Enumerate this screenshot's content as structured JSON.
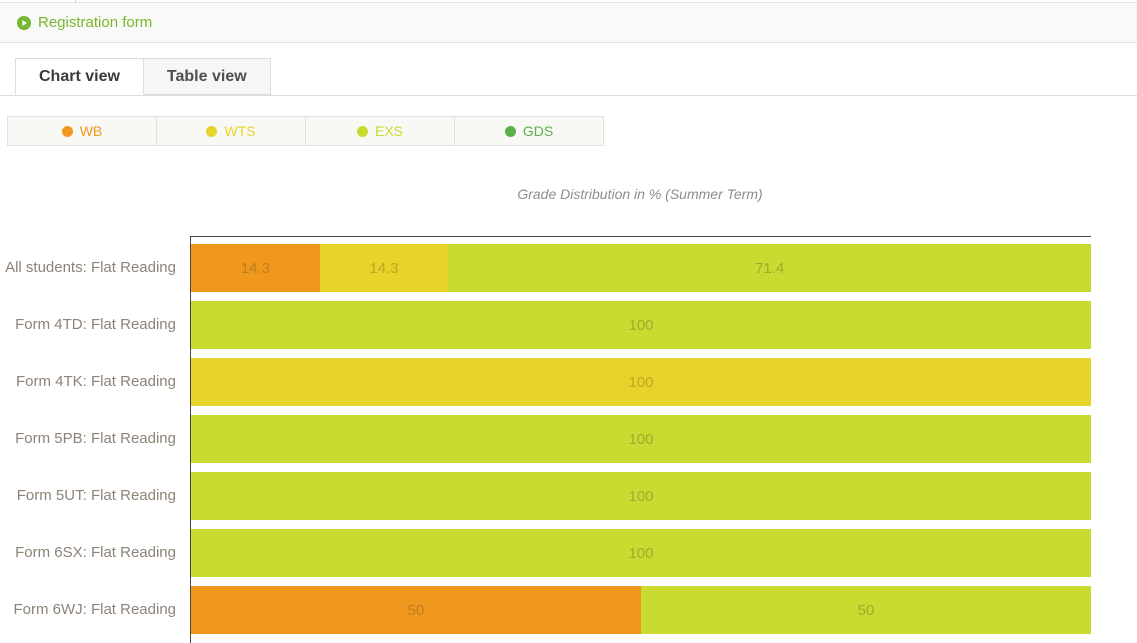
{
  "header": {
    "back_link_label": "Registration form"
  },
  "tabs": [
    {
      "label": "Chart view",
      "active": true
    },
    {
      "label": "Table view",
      "active": false
    }
  ],
  "chart_data": {
    "type": "bar",
    "orientation": "horizontal",
    "stacked": true,
    "title": "Grade Distribution in % (Summer Term)",
    "unit": "%",
    "xlim": [
      0,
      100
    ],
    "legend_position": "top-left",
    "categories": [
      "All students: Flat Reading",
      "Form 4TD: Flat Reading",
      "Form 4TK: Flat Reading",
      "Form 5PB: Flat Reading",
      "Form 5UT: Flat Reading",
      "Form 6SX: Flat Reading",
      "Form 6WJ: Flat Reading"
    ],
    "series": [
      {
        "name": "WB",
        "color": "#F0981E",
        "value_label_color": "#BD7D22",
        "values": [
          14.3,
          0,
          0,
          0,
          0,
          0,
          50
        ]
      },
      {
        "name": "WTS",
        "color": "#E7D42B",
        "value_label_color": "#BCA724",
        "values": [
          14.3,
          0,
          100,
          0,
          0,
          0,
          0
        ]
      },
      {
        "name": "EXS",
        "color": "#C9DB30",
        "value_label_color": "#9EAC2F",
        "values": [
          71.4,
          100,
          0,
          100,
          100,
          100,
          50
        ]
      },
      {
        "name": "GDS",
        "color": "#5BB04C",
        "value_label_color": "#4F8F42",
        "values": [
          0,
          0,
          0,
          0,
          0,
          0,
          0
        ]
      }
    ]
  },
  "colors": {
    "accent_green": "#76B82F",
    "axis_line": "#4C4742",
    "category_label": "#8D8378"
  }
}
